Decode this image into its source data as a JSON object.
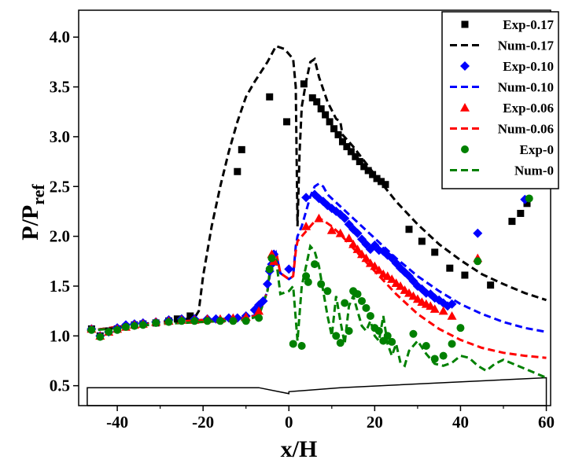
{
  "chart_data": {
    "type": "scatter",
    "xlabel": "x/H",
    "ylabel": {
      "base": "P/P",
      "sub": "ref"
    },
    "xlim": [
      -49,
      61
    ],
    "ylim": [
      0.3,
      4.27
    ],
    "xticks": [
      -40,
      -20,
      0,
      20,
      40,
      60
    ],
    "xtick_labels": [
      "-40",
      "-20",
      "0",
      "20",
      "40",
      "60"
    ],
    "yticks": [
      0.5,
      1.0,
      1.5,
      2.0,
      2.5,
      3.0,
      3.5,
      4.0
    ],
    "ytick_labels": [
      "0.5",
      "1.0",
      "1.5",
      "2.0",
      "2.5",
      "3.0",
      "3.5",
      "4.0"
    ],
    "legend_position": "top-right",
    "series": [
      {
        "name": "Exp-0.17",
        "kind": "marker",
        "marker": "square",
        "color": "#000000",
        "x": [
          -46,
          -44,
          -42,
          -40,
          -38,
          -36,
          -34,
          -31,
          -28,
          -26,
          -23,
          -12,
          -11,
          -4.5,
          -0.5,
          3.5,
          5.5,
          6.5,
          7.5,
          8.5,
          9.5,
          10.5,
          11.5,
          12.5,
          13.5,
          14.5,
          15.5,
          16.5,
          17.5,
          18.5,
          19.5,
          20.5,
          21.5,
          22.5,
          28,
          31,
          34,
          37.5,
          41,
          47,
          52,
          54,
          55.5
        ],
        "y": [
          1.07,
          1.0,
          1.05,
          1.07,
          1.09,
          1.11,
          1.12,
          1.13,
          1.15,
          1.17,
          1.2,
          2.65,
          2.87,
          3.4,
          3.15,
          3.53,
          3.39,
          3.35,
          3.28,
          3.22,
          3.15,
          3.08,
          3.02,
          2.95,
          2.9,
          2.85,
          2.8,
          2.75,
          2.7,
          2.66,
          2.62,
          2.58,
          2.55,
          2.52,
          2.07,
          1.95,
          1.84,
          1.68,
          1.61,
          1.51,
          2.15,
          2.23,
          2.33
        ]
      },
      {
        "name": "Num-0.17",
        "kind": "line",
        "dash": "dashed",
        "color": "#000000",
        "x": [
          -47,
          -40,
          -30,
          -22,
          -21,
          -20,
          -18,
          -16,
          -14,
          -12,
          -10,
          -8,
          -5,
          -3,
          -1,
          1,
          1.6,
          2,
          2.5,
          3,
          4,
          5,
          6,
          7,
          9,
          11,
          12,
          12.5,
          15,
          20,
          25,
          30,
          35,
          40,
          45,
          50,
          55,
          60
        ],
        "y": [
          1.05,
          1.09,
          1.14,
          1.18,
          1.25,
          1.6,
          2.1,
          2.5,
          2.85,
          3.15,
          3.4,
          3.55,
          3.75,
          3.91,
          3.88,
          3.78,
          3.5,
          2.1,
          2.85,
          3.3,
          3.55,
          3.75,
          3.78,
          3.6,
          3.35,
          3.18,
          3.15,
          3.02,
          2.9,
          2.62,
          2.35,
          2.12,
          1.92,
          1.76,
          1.62,
          1.52,
          1.43,
          1.36
        ]
      },
      {
        "name": "Exp-0.10",
        "kind": "marker",
        "marker": "diamond",
        "color": "#0000ff",
        "x": [
          -46,
          -44,
          -42,
          -40,
          -38,
          -36,
          -34,
          -31,
          -28,
          -25,
          -22,
          -19,
          -17,
          -14,
          -12,
          -10,
          -8,
          -7,
          -6,
          -5,
          -4.5,
          -4,
          -3.5,
          0,
          4,
          6,
          7,
          8,
          9,
          10,
          11,
          12,
          13,
          14,
          15,
          16,
          17,
          18,
          19,
          20,
          21,
          22,
          23,
          24,
          25,
          26,
          27,
          28,
          29,
          30,
          31,
          32,
          33,
          34,
          35,
          36,
          37,
          38,
          44,
          55
        ],
        "y": [
          1.07,
          1.0,
          1.04,
          1.08,
          1.11,
          1.12,
          1.13,
          1.14,
          1.16,
          1.17,
          1.17,
          1.17,
          1.17,
          1.18,
          1.18,
          1.2,
          1.26,
          1.31,
          1.35,
          1.52,
          1.65,
          1.72,
          1.82,
          1.67,
          2.39,
          2.42,
          2.38,
          2.35,
          2.31,
          2.28,
          2.25,
          2.22,
          2.18,
          2.12,
          2.07,
          2.03,
          1.97,
          1.92,
          1.87,
          1.91,
          1.86,
          1.85,
          1.81,
          1.78,
          1.73,
          1.68,
          1.64,
          1.6,
          1.55,
          1.5,
          1.47,
          1.43,
          1.42,
          1.38,
          1.36,
          1.33,
          1.3,
          1.32,
          2.03,
          2.37
        ]
      },
      {
        "name": "Num-0.10",
        "kind": "line",
        "dash": "dashed",
        "color": "#0000ff",
        "x": [
          -47,
          -40,
          -30,
          -20,
          -10,
          -7,
          -5,
          -4,
          -3,
          -2,
          0,
          1,
          1.6,
          2,
          3,
          4,
          5,
          6,
          7,
          8,
          9,
          10,
          12,
          15,
          20,
          25,
          30,
          35,
          40,
          45,
          50,
          55,
          60
        ],
        "y": [
          1.05,
          1.09,
          1.13,
          1.16,
          1.18,
          1.22,
          1.45,
          1.74,
          1.83,
          1.63,
          1.57,
          1.6,
          1.9,
          2.0,
          2.1,
          2.25,
          2.4,
          2.5,
          2.53,
          2.5,
          2.42,
          2.38,
          2.3,
          2.18,
          1.98,
          1.78,
          1.6,
          1.45,
          1.32,
          1.22,
          1.14,
          1.08,
          1.04
        ]
      },
      {
        "name": "Exp-0.06",
        "kind": "marker",
        "marker": "triangle",
        "color": "#ff0000",
        "x": [
          -46,
          -44,
          -42,
          -40,
          -38,
          -36,
          -34,
          -31,
          -28,
          -25,
          -22,
          -19,
          -16,
          -13,
          -10,
          -7,
          -4,
          -3.5,
          4,
          7,
          10,
          12,
          14,
          15,
          16,
          17,
          18,
          19,
          20,
          21,
          22,
          23,
          24,
          25,
          26,
          27,
          28,
          29,
          30,
          31,
          32,
          33,
          34,
          36,
          38,
          44
        ],
        "y": [
          1.07,
          1.0,
          1.04,
          1.07,
          1.09,
          1.11,
          1.12,
          1.14,
          1.15,
          1.16,
          1.16,
          1.17,
          1.17,
          1.18,
          1.19,
          1.25,
          1.82,
          1.75,
          2.1,
          2.18,
          2.06,
          2.03,
          1.98,
          1.92,
          1.87,
          1.82,
          1.78,
          1.73,
          1.7,
          1.66,
          1.62,
          1.6,
          1.57,
          1.53,
          1.5,
          1.46,
          1.43,
          1.4,
          1.37,
          1.34,
          1.32,
          1.3,
          1.27,
          1.25,
          1.2,
          1.78
        ]
      },
      {
        "name": "Num-0.06",
        "kind": "line",
        "dash": "dashed",
        "color": "#ff0000",
        "x": [
          -47,
          -40,
          -30,
          -20,
          -10,
          -7,
          -5,
          -4,
          -3,
          -2,
          0,
          1,
          1.6,
          2,
          3,
          4,
          5,
          6,
          7,
          8,
          10,
          12,
          15,
          20,
          25,
          30,
          35,
          40,
          45,
          50,
          55,
          60
        ],
        "y": [
          1.05,
          1.09,
          1.13,
          1.16,
          1.18,
          1.21,
          1.45,
          1.8,
          1.85,
          1.63,
          1.57,
          1.6,
          1.85,
          1.95,
          2.0,
          2.05,
          2.1,
          2.15,
          2.18,
          2.16,
          2.1,
          2.02,
          1.88,
          1.65,
          1.42,
          1.22,
          1.07,
          0.96,
          0.88,
          0.83,
          0.8,
          0.78
        ]
      },
      {
        "name": "Exp-0",
        "kind": "marker",
        "marker": "circle",
        "color": "#008000",
        "x": [
          -46,
          -44,
          -42,
          -40,
          -38,
          -36,
          -34,
          -31,
          -28,
          -25,
          -22,
          -19,
          -16,
          -13,
          -10,
          -7,
          -4.5,
          -4,
          1,
          3,
          4,
          4.5,
          6,
          7.5,
          9,
          11,
          12,
          13,
          14,
          15,
          16,
          17,
          18,
          19,
          20,
          21,
          22,
          23,
          24,
          29,
          32,
          34,
          36,
          38,
          40,
          44,
          56
        ],
        "y": [
          1.06,
          0.99,
          1.04,
          1.06,
          1.09,
          1.1,
          1.11,
          1.13,
          1.14,
          1.15,
          1.15,
          1.15,
          1.15,
          1.15,
          1.15,
          1.18,
          1.67,
          1.78,
          0.92,
          0.9,
          1.6,
          1.54,
          1.72,
          1.52,
          1.45,
          1.0,
          0.93,
          1.33,
          1.05,
          1.45,
          1.42,
          1.35,
          1.28,
          1.2,
          1.08,
          1.05,
          0.95,
          1.0,
          0.94,
          1.02,
          0.9,
          0.77,
          0.8,
          0.92,
          1.08,
          1.75,
          2.38
        ]
      },
      {
        "name": "Num-0",
        "kind": "line",
        "dash": "dashed",
        "color": "#008000",
        "x": [
          -47,
          -40,
          -30,
          -20,
          -10,
          -7,
          -5,
          -4,
          -3,
          -2,
          0,
          1,
          2,
          3,
          4,
          5,
          6,
          7,
          8,
          9,
          10,
          11,
          12,
          13,
          14,
          15,
          16,
          17,
          18,
          19,
          20,
          21,
          22,
          23,
          24,
          25,
          26,
          27,
          28,
          30,
          32,
          34,
          36,
          38,
          40,
          42,
          44,
          46,
          48,
          50,
          55,
          60
        ],
        "y": [
          1.05,
          1.08,
          1.12,
          1.14,
          1.16,
          1.2,
          1.45,
          1.82,
          1.78,
          1.42,
          1.45,
          1.5,
          0.95,
          1.5,
          1.7,
          1.9,
          1.85,
          1.7,
          1.45,
          1.2,
          1.0,
          1.4,
          1.15,
          0.92,
          1.3,
          1.4,
          1.25,
          1.1,
          1.05,
          1.15,
          1.0,
          0.95,
          1.2,
          0.92,
          0.8,
          0.92,
          0.73,
          0.7,
          0.85,
          0.95,
          0.82,
          0.72,
          0.7,
          0.73,
          0.8,
          0.78,
          0.7,
          0.65,
          0.72,
          0.76,
          0.67,
          0.58
        ]
      }
    ],
    "geometry_outline": {
      "x": [
        -47,
        -47,
        -7,
        0,
        0,
        0,
        12,
        60,
        60,
        -47
      ],
      "y": [
        0.3,
        0.48,
        0.48,
        0.42,
        0.43,
        0.44,
        0.48,
        0.58,
        0.3,
        0.3
      ]
    }
  }
}
